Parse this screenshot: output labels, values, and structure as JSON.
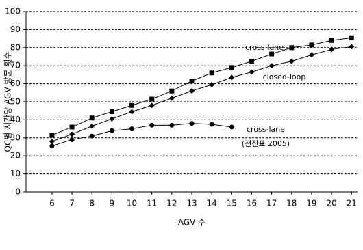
{
  "chart_data": {
    "type": "line",
    "xlabel": "AGV 수",
    "ylabel": "QC별 시간당 AGV 방문 횟수",
    "x": [
      6,
      7,
      8,
      9,
      10,
      11,
      12,
      13,
      14,
      15,
      16,
      17,
      18,
      19,
      20,
      21
    ],
    "xlim": [
      4.7,
      21.3
    ],
    "xticks": [
      6,
      7,
      8,
      9,
      10,
      11,
      12,
      13,
      14,
      15,
      16,
      17,
      18,
      19,
      20,
      21
    ],
    "ylim": [
      0,
      100
    ],
    "yticks": [
      0,
      10,
      20,
      30,
      40,
      50,
      60,
      70,
      80,
      90,
      100
    ],
    "grid": true,
    "series": [
      {
        "name": "cross-lane",
        "color": "#000000",
        "marker": "square",
        "values": [
          31.5,
          36,
          41,
          44.5,
          48,
          51.5,
          56,
          61.5,
          66,
          69,
          72.5,
          76.5,
          80,
          81.5,
          84,
          85.5
        ]
      },
      {
        "name": "closed-loop",
        "color": "#000000",
        "marker": "diamond",
        "values": [
          28,
          32,
          36.5,
          40.5,
          44.5,
          48,
          52,
          56,
          59.5,
          63.5,
          66.5,
          70,
          72.5,
          76,
          79,
          80.5
        ]
      },
      {
        "name": "cross-lane",
        "note": "(전진표 2005)",
        "color": "#000000",
        "marker": "circle",
        "values": [
          25.5,
          29,
          31,
          34,
          35,
          37,
          37,
          38,
          37.5,
          36,
          null,
          null,
          null,
          null,
          null,
          null
        ]
      }
    ]
  }
}
